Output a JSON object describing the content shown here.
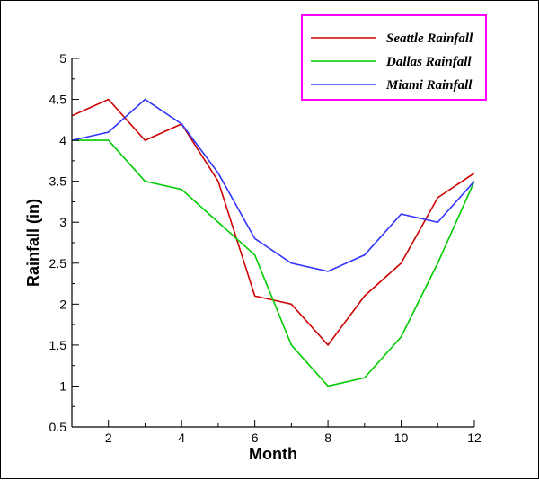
{
  "chart_data": {
    "type": "line",
    "title": "",
    "xlabel": "Month",
    "ylabel": "Rainfall (in)",
    "xlim": [
      1,
      12
    ],
    "ylim": [
      0.5,
      5
    ],
    "x_ticks": [
      2,
      4,
      6,
      8,
      10,
      12
    ],
    "y_ticks": [
      0.5,
      1,
      1.5,
      2,
      2.5,
      3,
      3.5,
      4,
      4.5,
      5
    ],
    "grid": false,
    "legend_position": "top-right",
    "legend_border_color": "#ff00ff",
    "x": [
      1,
      2,
      3,
      4,
      5,
      6,
      7,
      8,
      9,
      10,
      11,
      12
    ],
    "series": [
      {
        "name": "Seattle Rainfall",
        "color": "#cc0000",
        "values": [
          4.3,
          4.5,
          4.0,
          4.2,
          3.5,
          2.1,
          2.0,
          1.5,
          2.1,
          2.5,
          3.3,
          3.6
        ]
      },
      {
        "name": "Dallas Rainfall",
        "color": "#00cc00",
        "values": [
          4.0,
          4.0,
          3.5,
          3.4,
          3.0,
          2.6,
          1.5,
          1.0,
          1.1,
          1.6,
          2.5,
          3.5
        ]
      },
      {
        "name": "Miami Rainfall",
        "color": "#3333ff",
        "values": [
          4.0,
          4.1,
          4.5,
          4.2,
          3.6,
          2.8,
          2.5,
          2.4,
          2.6,
          3.1,
          3.0,
          3.5
        ]
      }
    ]
  }
}
